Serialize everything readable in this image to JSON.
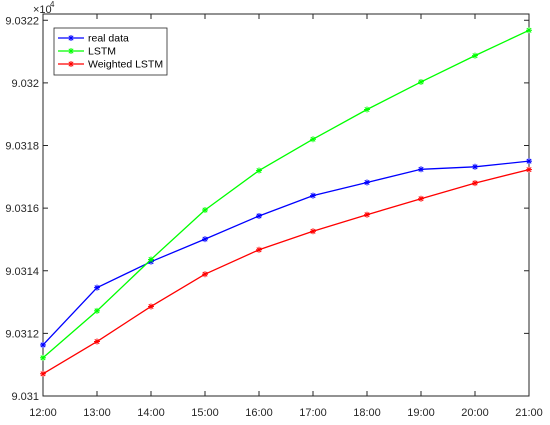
{
  "chart_data": {
    "type": "line",
    "title": "",
    "xlabel": "",
    "ylabel": "",
    "categories": [
      "12:00",
      "13:00",
      "14:00",
      "15:00",
      "16:00",
      "17:00",
      "18:00",
      "19:00",
      "20:00",
      "21:00"
    ],
    "y_scale_exponent": {
      "base": "×10",
      "power": "4"
    },
    "ylim": [
      9.031,
      9.03222
    ],
    "y_ticks": [
      9.031,
      9.0312,
      9.0314,
      9.0316,
      9.0318,
      9.032,
      9.0322
    ],
    "y_tick_labels": [
      "9.031",
      "9.0312",
      "9.0314",
      "9.0316",
      "9.0318",
      "9.032",
      "9.0322"
    ],
    "grid": false,
    "legend_position": "top-left",
    "series": [
      {
        "name": "real data",
        "color": "#0000ff",
        "values": [
          9.031163,
          9.031346,
          9.031429,
          9.031501,
          9.031575,
          9.03164,
          9.031682,
          9.031724,
          9.031732,
          9.03175
        ]
      },
      {
        "name": "LSTM",
        "color": "#00ff00",
        "values": [
          9.031122,
          9.031272,
          9.031436,
          9.031594,
          9.03172,
          9.03182,
          9.031915,
          9.032003,
          9.032087,
          9.032168
        ]
      },
      {
        "name": "Weighted LSTM",
        "color": "#ff0000",
        "values": [
          9.031071,
          9.031174,
          9.031286,
          9.031389,
          9.031467,
          9.031526,
          9.031579,
          9.03163,
          9.03168,
          9.031723
        ]
      }
    ]
  }
}
